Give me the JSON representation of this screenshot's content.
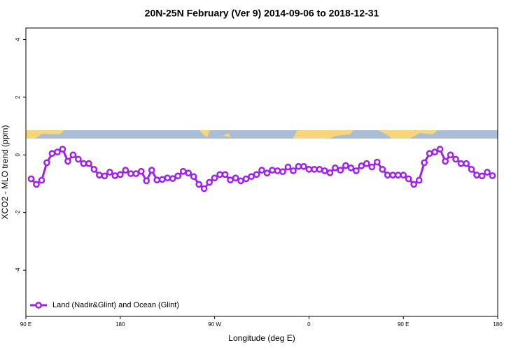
{
  "chart_data": {
    "type": "line",
    "title": "20N-25N February (Ver 9)   2014-09-06 to 2018-12-31",
    "x_label": "Longitude (deg E)",
    "y_label": "XCO2 - MLO trend (ppm)",
    "xlim": [
      90,
      540
    ],
    "ylim": [
      -5.6,
      4.4
    ],
    "xticks": [
      {
        "value": 90,
        "label": "90 E"
      },
      180,
      {
        "value": 270,
        "label": "90 W"
      },
      {
        "value": 360,
        "label": "0"
      },
      {
        "value": 450,
        "label": "90 E"
      },
      {
        "value": 540,
        "label": "180"
      }
    ],
    "yticks": [
      -4,
      -2,
      0,
      2,
      4
    ],
    "legend": "bottom-left",
    "x": [
      95,
      100,
      105,
      110,
      115,
      120,
      125,
      130,
      135,
      140,
      145,
      150,
      155,
      160,
      165,
      170,
      175,
      180,
      185,
      190,
      195,
      200,
      205,
      210,
      215,
      220,
      225,
      230,
      235,
      240,
      245,
      250,
      255,
      260,
      265,
      270,
      275,
      280,
      285,
      290,
      295,
      300,
      305,
      310,
      315,
      320,
      325,
      330,
      335,
      340,
      345,
      350,
      355,
      360,
      365,
      370,
      375,
      380,
      385,
      390,
      395,
      400,
      405,
      410,
      415,
      420,
      425,
      430,
      435,
      440,
      445,
      450,
      455,
      460,
      465,
      470,
      475,
      480,
      485,
      490,
      495,
      500,
      505,
      510,
      515,
      520,
      525,
      530,
      535
    ],
    "series": [
      {
        "name": "Land (Nadir&Glint) and Ocean (Glint)",
        "color": "#a020f0",
        "values": [
          -0.83,
          -1.02,
          -0.88,
          -0.27,
          0.05,
          0.1,
          0.2,
          -0.22,
          0,
          -0.15,
          -0.3,
          -0.3,
          -0.5,
          -0.7,
          -0.73,
          -0.6,
          -0.72,
          -0.68,
          -0.53,
          -0.65,
          -0.65,
          -0.57,
          -0.9,
          -0.53,
          -0.87,
          -0.85,
          -0.8,
          -0.82,
          -0.73,
          -0.57,
          -0.63,
          -0.75,
          -1.02,
          -1.17,
          -0.95,
          -0.8,
          -0.68,
          -0.68,
          -0.87,
          -0.8,
          -0.9,
          -0.83,
          -0.75,
          -0.68,
          -0.53,
          -0.63,
          -0.53,
          -0.55,
          -0.58,
          -0.42,
          -0.55,
          -0.4,
          -0.4,
          -0.5,
          -0.5,
          -0.5,
          -0.55,
          -0.62,
          -0.45,
          -0.53,
          -0.37,
          -0.45,
          -0.55,
          -0.38,
          -0.3,
          -0.42,
          -0.25,
          -0.5,
          -0.7,
          -0.7,
          -0.7,
          -0.7,
          -0.83,
          -1.02,
          -0.88,
          -0.27,
          0.05,
          0.1,
          0.2,
          -0.22,
          0,
          -0.15,
          -0.3,
          -0.3,
          -0.5,
          -0.7,
          -0.73,
          -0.6,
          -0.72
        ]
      }
    ]
  }
}
